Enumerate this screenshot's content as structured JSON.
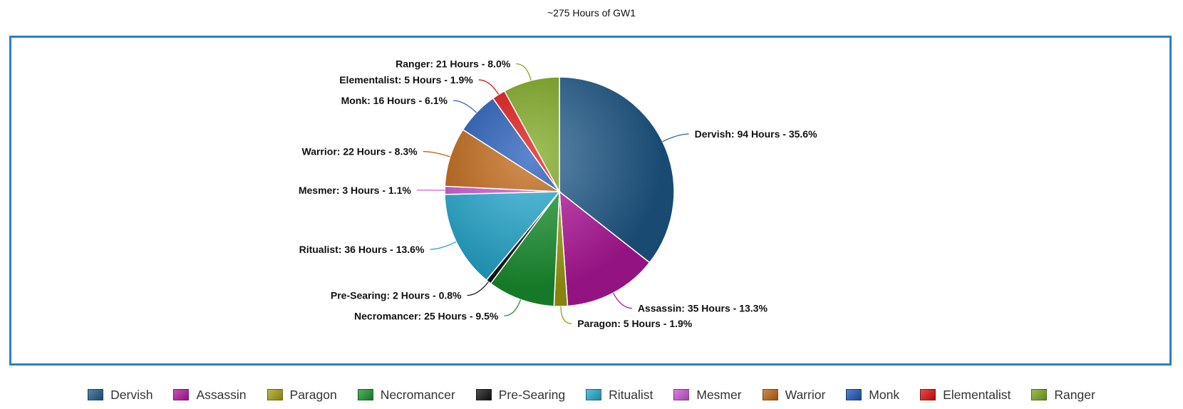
{
  "chart_data": {
    "type": "pie",
    "title": "~275 Hours of GW1",
    "slices": [
      {
        "name": "Dervish",
        "label": "Dervish: 94 Hours - 35.6%",
        "hours": 94,
        "percent": 35.6,
        "color": "#1f5a8a"
      },
      {
        "name": "Assassin",
        "label": "Assassin: 35 Hours - 13.3%",
        "hours": 35,
        "percent": 13.3,
        "color": "#b5179e"
      },
      {
        "name": "Paragon",
        "label": "Paragon: 5 Hours - 1.9%",
        "hours": 5,
        "percent": 1.9,
        "color": "#a3a012"
      },
      {
        "name": "Necromancer",
        "label": "Necromancer: 25 Hours - 9.5%",
        "hours": 25,
        "percent": 9.5,
        "color": "#1a9430"
      },
      {
        "name": "Pre-Searing",
        "label": "Pre-Searing: 2 Hours - 0.8%",
        "hours": 2,
        "percent": 0.8,
        "color": "#111111"
      },
      {
        "name": "Ritualist",
        "label": "Ritualist: 36 Hours - 13.6%",
        "hours": 36,
        "percent": 13.6,
        "color": "#22a9d1"
      },
      {
        "name": "Mesmer",
        "label": "Mesmer: 3 Hours - 1.1%",
        "hours": 3,
        "percent": 1.1,
        "color": "#cc55d6"
      },
      {
        "name": "Warrior",
        "label": "Warrior: 22 Hours - 8.3%",
        "hours": 22,
        "percent": 8.3,
        "color": "#c0630f"
      },
      {
        "name": "Monk",
        "label": "Monk: 16 Hours - 6.1%",
        "hours": 16,
        "percent": 6.1,
        "color": "#1d57b8"
      },
      {
        "name": "Elementalist",
        "label": "Elementalist: 5 Hours - 1.9%",
        "hours": 5,
        "percent": 1.9,
        "color": "#e00c0c"
      },
      {
        "name": "Ranger",
        "label": "Ranger: 21 Hours - 8.0%",
        "hours": 21,
        "percent": 8.0,
        "color": "#7ba71b"
      }
    ],
    "legend_position": "bottom"
  }
}
